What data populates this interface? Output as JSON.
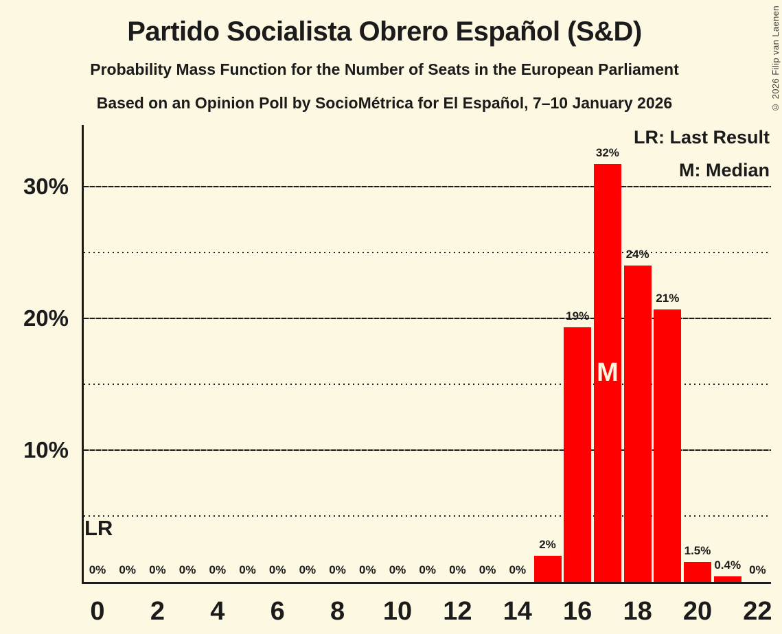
{
  "meta": {
    "copyright": "© 2026 Filip van Laenen"
  },
  "header": {
    "title": "Partido Socialista Obrero Español (S&D)",
    "subtitle1": "Probability Mass Function for the Number of Seats in the European Parliament",
    "subtitle2": "Based on an Opinion Poll by SocioMétrica for El Español, 7–10 January 2026"
  },
  "legend": {
    "lr": "LR: Last Result",
    "m": "M: Median"
  },
  "chart_data": {
    "type": "bar",
    "title": "Partido Socialista Obrero Español (S&D)",
    "xlabel": "",
    "ylabel": "",
    "seats": [
      0,
      1,
      2,
      3,
      4,
      5,
      6,
      7,
      8,
      9,
      10,
      11,
      12,
      13,
      14,
      15,
      16,
      17,
      18,
      19,
      20,
      21,
      22
    ],
    "values": [
      0,
      0,
      0,
      0,
      0,
      0,
      0,
      0,
      0,
      0,
      0,
      0,
      0,
      0,
      0,
      2,
      19.3,
      31.7,
      24,
      20.7,
      1.5,
      0.4,
      0
    ],
    "labels": [
      "0%",
      "0%",
      "0%",
      "0%",
      "0%",
      "0%",
      "0%",
      "0%",
      "0%",
      "0%",
      "0%",
      "0%",
      "0%",
      "0%",
      "0%",
      "2%",
      "19%",
      "32%",
      "24%",
      "21%",
      "1.5%",
      "0.4%",
      "0%"
    ],
    "xticks": [
      0,
      2,
      4,
      6,
      8,
      10,
      12,
      14,
      16,
      18,
      20,
      22
    ],
    "yticks": [
      {
        "value": 10,
        "label": "10%"
      },
      {
        "value": 20,
        "label": "20%"
      },
      {
        "value": 30,
        "label": "30%"
      }
    ],
    "gridlines": {
      "solid": [
        10,
        20,
        30
      ],
      "dotted": [
        5,
        15,
        25
      ]
    },
    "ylim": [
      0,
      34.7
    ],
    "legend_position": "top-right",
    "median_seat": 17,
    "median_label": "M",
    "last_result_label": "LR",
    "colors": {
      "bar": "#FF0000",
      "background": "#FDF8E1",
      "text": "#1B1B1B",
      "median_text": "#FCF7E0"
    }
  }
}
